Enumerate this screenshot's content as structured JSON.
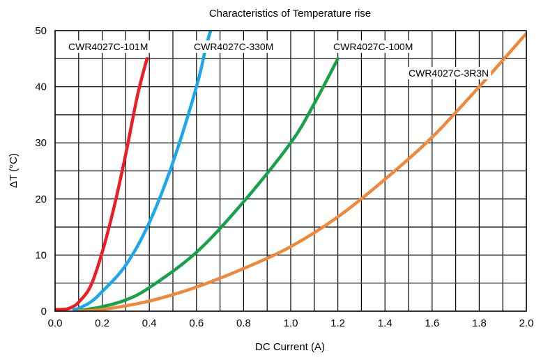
{
  "chart_data": {
    "type": "line",
    "title": "Characteristics of Temperature rise",
    "xlabel": "DC Current (A)",
    "ylabel": "ΔT (°C)",
    "xlim": [
      0,
      2.0
    ],
    "ylim": [
      0,
      50
    ],
    "grid": true,
    "x_ticks": [
      "0.0",
      "0.2",
      "0.4",
      "0.6",
      "0.8",
      "1.0",
      "1.2",
      "1.4",
      "1.6",
      "1.8",
      "2.0"
    ],
    "y_ticks": [
      "0",
      "10",
      "20",
      "30",
      "40",
      "50"
    ],
    "x_minor_step": 0.1,
    "y_minor_step": 5,
    "series": [
      {
        "name": "CWR4027C-101M",
        "color": "#ee1c25",
        "points": [
          [
            0.0,
            0.3
          ],
          [
            0.05,
            0.4
          ],
          [
            0.08,
            0.9
          ],
          [
            0.1,
            1.6
          ],
          [
            0.15,
            4.4
          ],
          [
            0.2,
            10.5
          ],
          [
            0.25,
            18.5
          ],
          [
            0.3,
            28
          ],
          [
            0.35,
            38.5
          ],
          [
            0.39,
            45
          ]
        ]
      },
      {
        "name": "CWR4027C-330M",
        "color": "#1aa7ec",
        "points": [
          [
            0.08,
            0.3
          ],
          [
            0.1,
            0.5
          ],
          [
            0.15,
            1.6
          ],
          [
            0.2,
            3.5
          ],
          [
            0.3,
            8.2
          ],
          [
            0.4,
            15.8
          ],
          [
            0.5,
            26.5
          ],
          [
            0.6,
            40
          ],
          [
            0.64,
            47
          ],
          [
            0.66,
            50
          ]
        ]
      },
      {
        "name": "CWR4027C-100M",
        "color": "#17a24a",
        "points": [
          [
            0.1,
            0.1
          ],
          [
            0.2,
            0.8
          ],
          [
            0.3,
            2.0
          ],
          [
            0.4,
            4.2
          ],
          [
            0.6,
            10.5
          ],
          [
            0.8,
            19.5
          ],
          [
            1.0,
            30
          ],
          [
            1.1,
            37
          ],
          [
            1.2,
            45
          ]
        ]
      },
      {
        "name": "CWR4027C-3R3N",
        "color": "#f0883a",
        "points": [
          [
            0.1,
            0.05
          ],
          [
            0.2,
            0.3
          ],
          [
            0.4,
            1.8
          ],
          [
            0.6,
            4.3
          ],
          [
            0.8,
            7.6
          ],
          [
            1.0,
            11.5
          ],
          [
            1.2,
            16.8
          ],
          [
            1.4,
            23.5
          ],
          [
            1.6,
            31
          ],
          [
            1.8,
            40
          ],
          [
            2.0,
            49.5
          ]
        ]
      }
    ]
  }
}
